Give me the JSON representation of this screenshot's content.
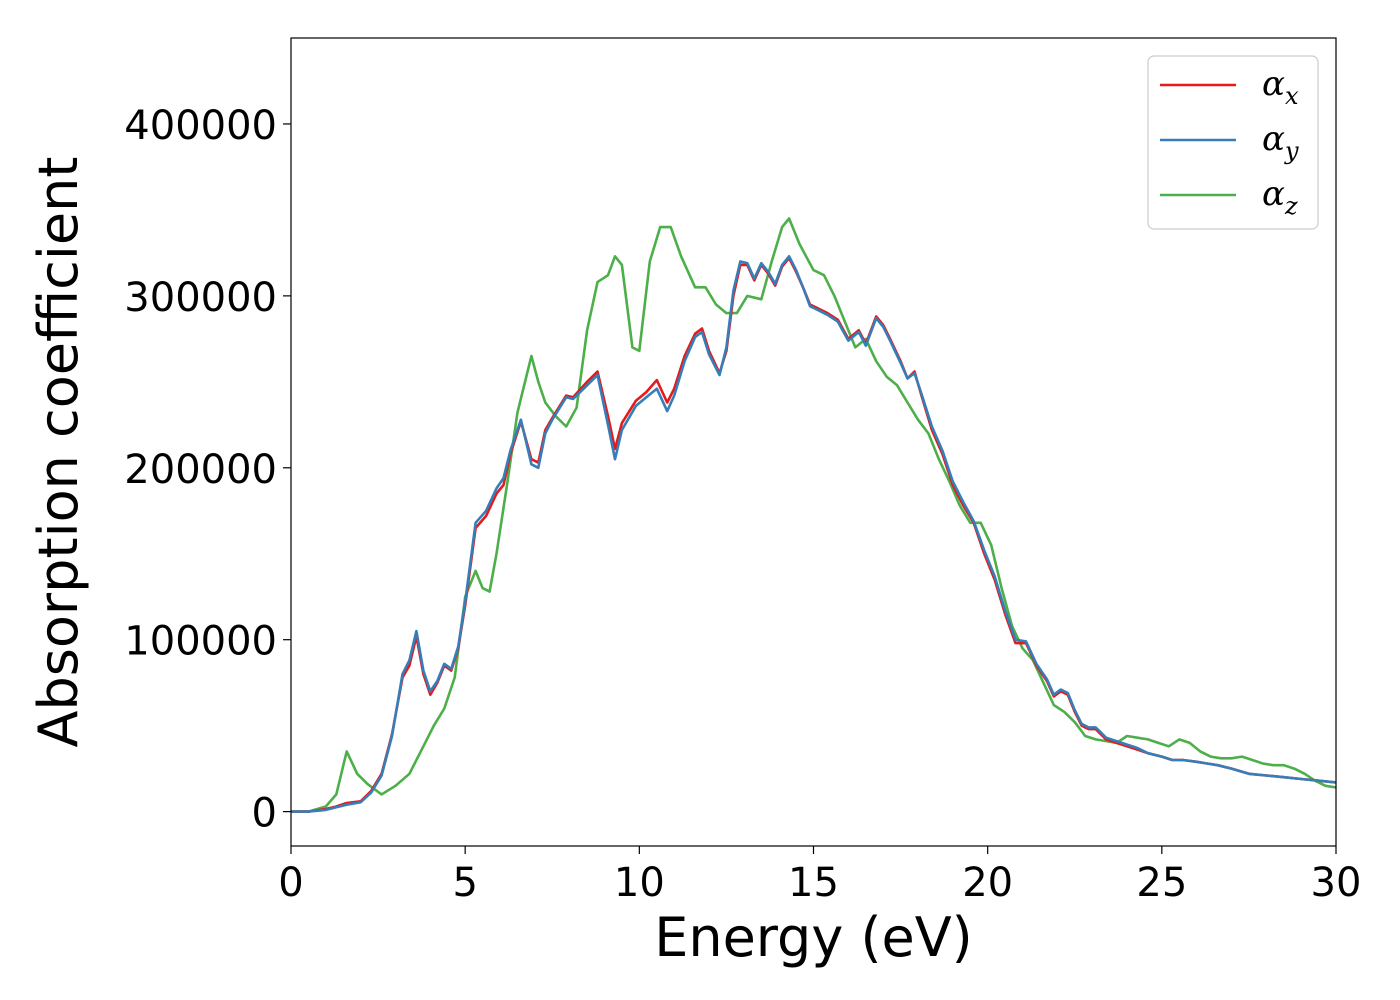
{
  "chart_data": {
    "type": "line",
    "title": "",
    "xlabel": "Energy (eV)",
    "ylabel": "Absorption coefficient",
    "xlim": [
      0,
      30
    ],
    "ylim": [
      -20000,
      450000
    ],
    "xticks": [
      0,
      5,
      10,
      15,
      20,
      25,
      30
    ],
    "yticks": [
      0,
      100000,
      200000,
      300000,
      400000
    ],
    "grid": false,
    "legend_position": "top-right",
    "series": [
      {
        "name": "α",
        "subscript": "x",
        "color": "#e41a1c",
        "x": [
          0,
          0.5,
          1,
          1.3,
          1.6,
          2.0,
          2.3,
          2.6,
          2.9,
          3.2,
          3.4,
          3.6,
          3.8,
          4.0,
          4.2,
          4.4,
          4.6,
          4.8,
          5.0,
          5.3,
          5.6,
          5.9,
          6.1,
          6.3,
          6.6,
          6.9,
          7.1,
          7.3,
          7.5,
          7.9,
          8.1,
          8.5,
          8.8,
          9.1,
          9.3,
          9.5,
          9.9,
          10.2,
          10.5,
          10.8,
          11.0,
          11.3,
          11.6,
          11.8,
          12.0,
          12.3,
          12.5,
          12.7,
          12.9,
          13.1,
          13.3,
          13.5,
          13.7,
          13.9,
          14.1,
          14.3,
          14.5,
          14.7,
          14.9,
          15.1,
          15.4,
          15.7,
          16.0,
          16.3,
          16.5,
          16.8,
          17.0,
          17.2,
          17.5,
          17.7,
          17.9,
          18.1,
          18.4,
          18.7,
          19.0,
          19.3,
          19.6,
          19.9,
          20.2,
          20.5,
          20.8,
          21.1,
          21.4,
          21.7,
          21.9,
          22.1,
          22.3,
          22.5,
          22.7,
          22.9,
          23.1,
          23.4,
          23.7,
          24.0,
          24.3,
          24.6,
          25.0,
          25.3,
          25.6,
          26.0,
          26.3,
          26.6,
          27.0,
          27.5,
          28.0,
          28.5,
          29.0,
          29.5,
          30
        ],
        "y": [
          0,
          0,
          1500,
          3000,
          5000,
          6000,
          12000,
          22000,
          45000,
          78000,
          85000,
          102000,
          80000,
          68000,
          75000,
          85000,
          82000,
          95000,
          120000,
          165000,
          172000,
          185000,
          190000,
          208000,
          227000,
          205000,
          203000,
          222000,
          229000,
          242000,
          241000,
          250000,
          256000,
          230000,
          211000,
          226000,
          239000,
          244000,
          251000,
          238000,
          246000,
          265000,
          278000,
          281000,
          268000,
          255000,
          268000,
          300000,
          318000,
          318000,
          309000,
          318000,
          313000,
          306000,
          317000,
          322000,
          314000,
          305000,
          295000,
          293000,
          290000,
          286000,
          275000,
          280000,
          272000,
          288000,
          283000,
          275000,
          262000,
          252000,
          256000,
          242000,
          222000,
          208000,
          190000,
          178000,
          168000,
          150000,
          135000,
          115000,
          98000,
          98000,
          85000,
          76000,
          67000,
          70000,
          68000,
          58000,
          50000,
          48000,
          48000,
          42000,
          40000,
          38000,
          36000,
          34000,
          32000,
          30000,
          30000,
          29000,
          28000,
          27000,
          25000,
          22000,
          21000,
          20000,
          19000,
          18000,
          17000
        ]
      },
      {
        "name": "α",
        "subscript": "y",
        "color": "#377eb8",
        "x": [
          0,
          0.5,
          1,
          1.3,
          1.6,
          2.0,
          2.3,
          2.6,
          2.9,
          3.2,
          3.4,
          3.6,
          3.8,
          4.0,
          4.2,
          4.4,
          4.6,
          4.8,
          5.0,
          5.3,
          5.6,
          5.9,
          6.1,
          6.3,
          6.6,
          6.9,
          7.1,
          7.3,
          7.5,
          7.9,
          8.1,
          8.5,
          8.8,
          9.1,
          9.3,
          9.5,
          9.9,
          10.2,
          10.5,
          10.8,
          11.0,
          11.3,
          11.6,
          11.8,
          12.0,
          12.3,
          12.5,
          12.7,
          12.9,
          13.1,
          13.3,
          13.5,
          13.7,
          13.9,
          14.1,
          14.3,
          14.5,
          14.7,
          14.9,
          15.1,
          15.4,
          15.7,
          16.0,
          16.3,
          16.5,
          16.8,
          17.0,
          17.2,
          17.5,
          17.7,
          17.9,
          18.1,
          18.4,
          18.7,
          19.0,
          19.3,
          19.6,
          19.9,
          20.2,
          20.5,
          20.8,
          21.1,
          21.4,
          21.7,
          21.9,
          22.1,
          22.3,
          22.5,
          22.7,
          22.9,
          23.1,
          23.4,
          23.7,
          24.0,
          24.3,
          24.6,
          25.0,
          25.3,
          25.6,
          26.0,
          26.3,
          26.6,
          27.0,
          27.5,
          28.0,
          28.5,
          29.0,
          29.5,
          30
        ],
        "y": [
          0,
          0,
          1000,
          2500,
          4000,
          5500,
          11000,
          21000,
          44000,
          80000,
          88000,
          105000,
          82000,
          70000,
          76000,
          86000,
          83000,
          96000,
          122000,
          168000,
          175000,
          188000,
          194000,
          210000,
          228000,
          202000,
          200000,
          220000,
          228000,
          241000,
          240000,
          248000,
          254000,
          225000,
          205000,
          222000,
          236000,
          241000,
          246000,
          233000,
          242000,
          262000,
          276000,
          279000,
          266000,
          254000,
          270000,
          303000,
          320000,
          319000,
          310000,
          319000,
          314000,
          307000,
          318000,
          323000,
          315000,
          305000,
          294000,
          292000,
          289000,
          285000,
          274000,
          279000,
          271000,
          287000,
          282000,
          274000,
          261000,
          252000,
          255000,
          243000,
          224000,
          210000,
          192000,
          180000,
          169000,
          152000,
          137000,
          117000,
          100000,
          99000,
          86000,
          77000,
          68000,
          71000,
          69000,
          59000,
          51000,
          49000,
          49000,
          43000,
          41000,
          39000,
          37000,
          34000,
          32000,
          30000,
          30000,
          29000,
          28000,
          27000,
          25000,
          22000,
          21000,
          20000,
          19000,
          18000,
          17000
        ]
      },
      {
        "name": "α",
        "subscript": "z",
        "color": "#4daf4a",
        "x": [
          0,
          0.5,
          1.0,
          1.3,
          1.6,
          1.9,
          2.2,
          2.6,
          3.0,
          3.4,
          3.8,
          4.1,
          4.4,
          4.7,
          5.0,
          5.3,
          5.5,
          5.7,
          5.9,
          6.2,
          6.5,
          6.9,
          7.1,
          7.3,
          7.6,
          7.9,
          8.2,
          8.5,
          8.8,
          9.1,
          9.3,
          9.5,
          9.8,
          10.0,
          10.3,
          10.6,
          10.9,
          11.2,
          11.6,
          11.9,
          12.2,
          12.5,
          12.8,
          13.1,
          13.5,
          13.8,
          14.1,
          14.3,
          14.6,
          15.0,
          15.3,
          15.6,
          15.9,
          16.2,
          16.5,
          16.8,
          17.1,
          17.4,
          17.7,
          18.0,
          18.3,
          18.6,
          18.9,
          19.2,
          19.5,
          19.8,
          20.1,
          20.4,
          20.7,
          21.0,
          21.3,
          21.6,
          21.9,
          22.2,
          22.5,
          22.8,
          23.1,
          23.4,
          23.7,
          24.0,
          24.3,
          24.6,
          24.9,
          25.2,
          25.5,
          25.8,
          26.1,
          26.4,
          26.7,
          27.0,
          27.3,
          27.6,
          27.9,
          28.2,
          28.5,
          28.8,
          29.1,
          29.4,
          29.7,
          30
        ],
        "y": [
          0,
          0,
          3000,
          10000,
          35000,
          22000,
          16000,
          10000,
          15000,
          22000,
          38000,
          50000,
          60000,
          78000,
          125000,
          140000,
          130000,
          128000,
          150000,
          190000,
          232000,
          265000,
          250000,
          238000,
          230000,
          224000,
          235000,
          280000,
          308000,
          312000,
          323000,
          318000,
          270000,
          268000,
          320000,
          340000,
          340000,
          323000,
          305000,
          305000,
          295000,
          290000,
          290000,
          300000,
          298000,
          320000,
          340000,
          345000,
          330000,
          315000,
          312000,
          300000,
          285000,
          270000,
          275000,
          262000,
          253000,
          248000,
          238000,
          228000,
          220000,
          205000,
          192000,
          178000,
          168000,
          168000,
          155000,
          130000,
          108000,
          95000,
          88000,
          75000,
          62000,
          58000,
          52000,
          44000,
          42000,
          41000,
          40000,
          44000,
          43000,
          42000,
          40000,
          38000,
          42000,
          40000,
          35000,
          32000,
          31000,
          31000,
          32000,
          30000,
          28000,
          27000,
          27000,
          25000,
          22000,
          18000,
          15000,
          14000
        ]
      }
    ]
  }
}
